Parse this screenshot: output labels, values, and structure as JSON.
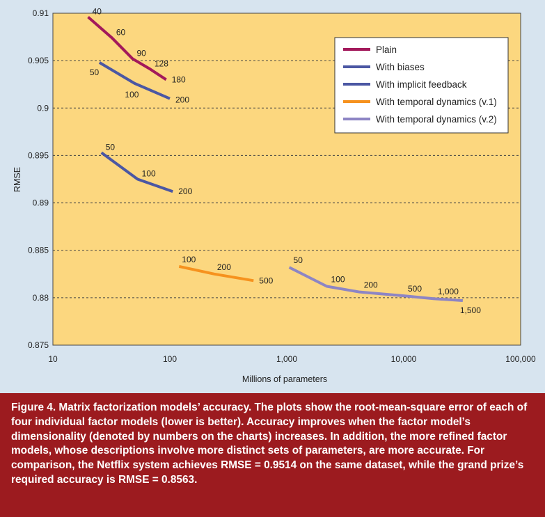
{
  "chart_data": {
    "type": "line",
    "xlabel": "Millions of parameters",
    "ylabel": "RMSE",
    "x_scale": "log",
    "xlim": [
      10,
      100000
    ],
    "ylim": [
      0.875,
      0.91
    ],
    "grid": true,
    "legend_position": "top-right",
    "x_ticks": [
      10,
      100,
      1000,
      10000,
      100000
    ],
    "x_tick_labels": [
      "10",
      "100",
      "1,000",
      "10,000",
      "100,000"
    ],
    "y_ticks": [
      0.875,
      0.88,
      0.885,
      0.89,
      0.895,
      0.9,
      0.905,
      0.91
    ],
    "y_tick_labels": [
      "0.875",
      "0.88",
      "0.885",
      "0.89",
      "0.895",
      "0.9",
      "0.905",
      "0.91"
    ],
    "series": [
      {
        "name": "Plain",
        "color": "#a3195b",
        "x": [
          20,
          32,
          48,
          68,
          93
        ],
        "y": [
          0.9096,
          0.9074,
          0.9052,
          0.9041,
          0.903
        ],
        "labels": [
          "40",
          "60",
          "90",
          "128",
          "180"
        ]
      },
      {
        "name": "With biases",
        "color": "#4b57a3",
        "x": [
          25,
          50,
          100
        ],
        "y": [
          0.9048,
          0.9026,
          0.901
        ],
        "labels": [
          "50",
          "100",
          "200"
        ]
      },
      {
        "name": "With implicit feedback",
        "color": "#4b57a3",
        "x": [
          26,
          53,
          106
        ],
        "y": [
          0.8953,
          0.8925,
          0.8912
        ],
        "labels": [
          "50",
          "100",
          "200"
        ]
      },
      {
        "name": "With temporal dynamics (v.1)",
        "color": "#f6921e",
        "x": [
          120,
          240,
          520
        ],
        "y": [
          0.8833,
          0.8825,
          0.8818
        ],
        "labels": [
          "100",
          "200",
          "500"
        ]
      },
      {
        "name": "With temporal dynamics (v.2)",
        "color": "#8d85c4",
        "x": [
          1050,
          2200,
          4200,
          10000,
          18000,
          32000
        ],
        "y": [
          0.8832,
          0.8812,
          0.8806,
          0.8802,
          0.8799,
          0.8797
        ],
        "labels": [
          "50",
          "100",
          "200",
          "500",
          "1,000",
          "1,500"
        ]
      }
    ]
  },
  "colors": {
    "plot_background": "#fcd77f",
    "page_background": "#d7e4ef",
    "caption_background": "#9c1b1f",
    "grid": "#444444"
  },
  "caption": {
    "label": "Figure 4.",
    "text": " Matrix factorization models’ accuracy. The plots show the root-mean-square error of each of four individual factor models (lower is better). Accuracy improves when the factor model’s dimensionality (denoted by numbers on the charts) increases. In addition, the more refined factor models, whose descriptions involve more distinct sets of parameters, are more accurate. For comparison, the Netflix system achieves RMSE = 0.9514 on the same dataset, while the grand prize’s required accuracy is RMSE = 0.8563."
  }
}
